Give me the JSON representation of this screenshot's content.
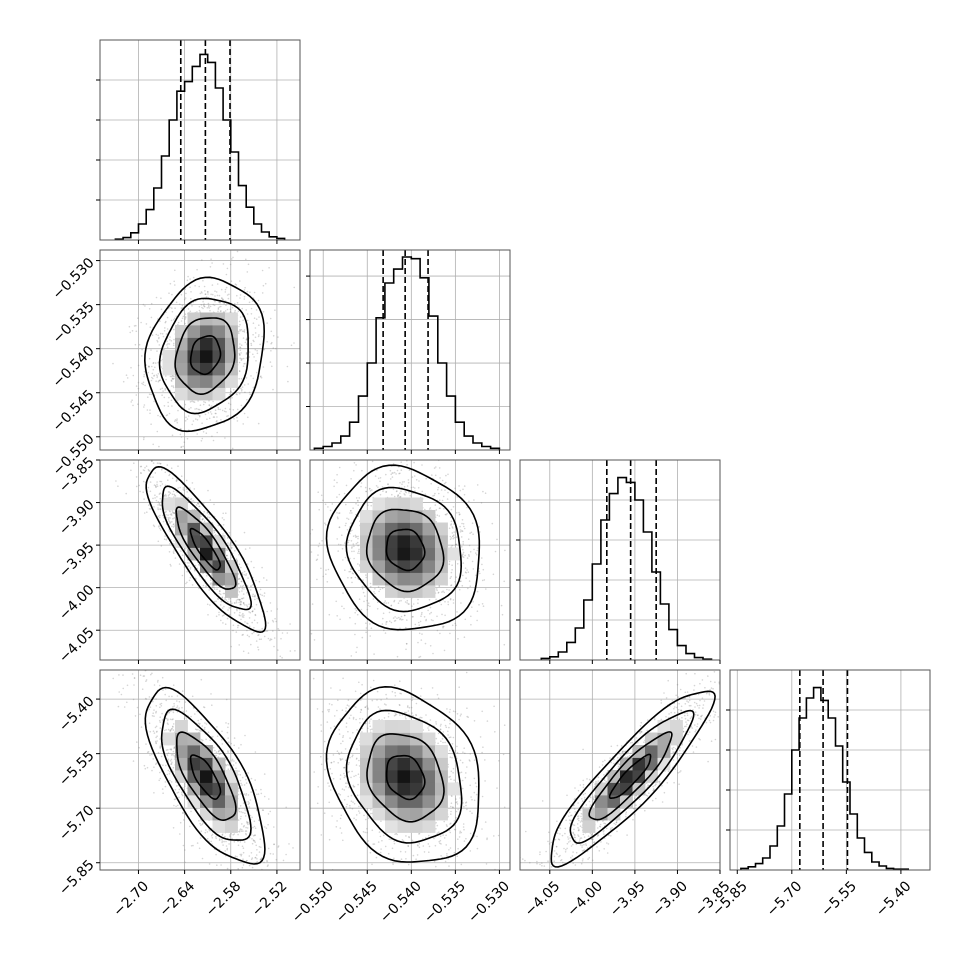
{
  "chart_data": {
    "type": "corner",
    "grid": true,
    "params": [
      {
        "range": [
          -2.75,
          -2.49
        ],
        "ticks": [
          -2.7,
          -2.64,
          -2.58,
          -2.52
        ],
        "tick_labels": [
          "−2.70",
          "−2.64",
          "−2.58",
          "−2.52"
        ],
        "quantiles": [
          -2.645,
          -2.613,
          -2.581
        ],
        "hist_edges": [
          -2.73,
          -2.72,
          -2.71,
          -2.7,
          -2.69,
          -2.68,
          -2.67,
          -2.66,
          -2.65,
          -2.64,
          -2.63,
          -2.62,
          -2.61,
          -2.6,
          -2.59,
          -2.58,
          -2.57,
          -2.56,
          -2.55,
          -2.54,
          -2.53,
          -2.52,
          -2.51
        ],
        "hist_counts": [
          1,
          3,
          9,
          20,
          38,
          65,
          105,
          150,
          186,
          198,
          217,
          232,
          222,
          190,
          150,
          110,
          68,
          41,
          20,
          10,
          4,
          2
        ],
        "hist_max_axis": 250,
        "hist_yticks": [
          50,
          100,
          150,
          200
        ]
      },
      {
        "range": [
          -0.5515,
          -0.5288
        ],
        "ticks": [
          -0.55,
          -0.545,
          -0.54,
          -0.535,
          -0.53
        ],
        "tick_labels": [
          "−0.550",
          "−0.545",
          "−0.540",
          "−0.535",
          "−0.530"
        ],
        "quantiles": [
          -0.5432,
          -0.5407,
          -0.5381
        ],
        "hist_edges": [
          -0.551,
          -0.55,
          -0.549,
          -0.548,
          -0.547,
          -0.546,
          -0.545,
          -0.544,
          -0.543,
          -0.542,
          -0.541,
          -0.54,
          -0.539,
          -0.538,
          -0.537,
          -0.536,
          -0.535,
          -0.534,
          -0.533,
          -0.532,
          -0.531,
          -0.53
        ],
        "hist_counts": [
          2,
          4,
          8,
          16,
          32,
          62,
          100,
          152,
          192,
          208,
          222,
          220,
          198,
          154,
          100,
          62,
          32,
          16,
          8,
          4,
          2
        ],
        "hist_max_axis": 230,
        "hist_yticks": [
          50,
          100,
          150,
          200
        ]
      },
      {
        "range": [
          -4.085,
          -3.85
        ],
        "ticks": [
          -4.05,
          -4.0,
          -3.95,
          -3.9,
          -3.85
        ],
        "tick_labels": [
          "−4.05",
          "−4.00",
          "−3.95",
          "−3.90",
          "−3.85"
        ],
        "quantiles": [
          -3.983,
          -3.955,
          -3.925
        ],
        "hist_edges": [
          -4.06,
          -4.05,
          -4.04,
          -4.03,
          -4.02,
          -4.01,
          -4.0,
          -3.99,
          -3.98,
          -3.97,
          -3.96,
          -3.95,
          -3.94,
          -3.93,
          -3.92,
          -3.91,
          -3.9,
          -3.89,
          -3.88,
          -3.87,
          -3.86
        ],
        "hist_counts": [
          2,
          4,
          10,
          22,
          40,
          75,
          120,
          175,
          208,
          228,
          222,
          200,
          160,
          110,
          70,
          38,
          18,
          8,
          3,
          1
        ],
        "hist_max_axis": 250,
        "hist_yticks": [
          50,
          100,
          150,
          200
        ]
      },
      {
        "range": [
          -5.87,
          -5.32
        ],
        "ticks": [
          -5.85,
          -5.7,
          -5.55,
          -5.4
        ],
        "tick_labels": [
          "−5.85",
          "−5.70",
          "−5.55",
          "−5.40"
        ],
        "quantiles": [
          -5.678,
          -5.614,
          -5.547
        ],
        "hist_edges": [
          -5.84,
          -5.82,
          -5.8,
          -5.78,
          -5.76,
          -5.74,
          -5.72,
          -5.7,
          -5.68,
          -5.66,
          -5.64,
          -5.62,
          -5.6,
          -5.58,
          -5.56,
          -5.54,
          -5.52,
          -5.5,
          -5.48,
          -5.46,
          -5.44,
          -5.42,
          -5.4,
          -5.38
        ],
        "hist_counts": [
          2,
          4,
          8,
          15,
          30,
          55,
          95,
          150,
          190,
          215,
          228,
          212,
          190,
          155,
          110,
          70,
          40,
          22,
          10,
          5,
          2,
          1,
          1
        ],
        "hist_max_axis": 250,
        "hist_yticks": [
          50,
          100,
          150,
          200
        ]
      }
    ],
    "pairs": [
      {
        "x": 0,
        "y": 1,
        "cx": -2.613,
        "cy": -0.5407,
        "sx": 0.024,
        "sy": 0.0027,
        "rho": 0.15
      },
      {
        "x": 0,
        "y": 2,
        "cx": -2.613,
        "cy": -3.955,
        "sx": 0.024,
        "sy": 0.03,
        "rho": -0.85
      },
      {
        "x": 1,
        "y": 2,
        "cx": -0.5407,
        "cy": -3.955,
        "sx": 0.0027,
        "sy": 0.03,
        "rho": -0.1
      },
      {
        "x": 0,
        "y": 3,
        "cx": -2.613,
        "cy": -5.614,
        "sx": 0.024,
        "sy": 0.075,
        "rho": -0.72
      },
      {
        "x": 1,
        "y": 3,
        "cx": -0.5407,
        "cy": -5.614,
        "sx": 0.0027,
        "sy": 0.075,
        "rho": -0.2
      },
      {
        "x": 2,
        "y": 3,
        "cx": -3.955,
        "cy": -5.614,
        "sx": 0.03,
        "sy": 0.075,
        "rho": 0.9
      }
    ],
    "contour_levels_sigma": [
      0.5,
      1.0,
      1.5,
      2.0
    ]
  },
  "colors": {
    "line": "#000000",
    "grid": "#b0b0b0",
    "points": "#888888",
    "frame": "#555555"
  }
}
